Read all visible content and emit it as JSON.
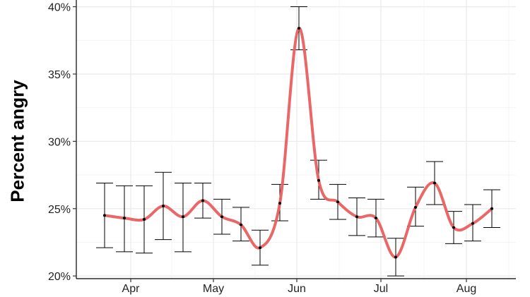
{
  "chart_data": {
    "type": "line",
    "title": "",
    "xlabel": "",
    "ylabel": "Percent angry",
    "x_tick_labels": [
      "Apr",
      "May",
      "Jun",
      "Jul",
      "Aug"
    ],
    "y_tick_labels": [
      "20%",
      "25%",
      "30%",
      "35%",
      "40%"
    ],
    "y_ticks": [
      20,
      25,
      30,
      35,
      40
    ],
    "ylim": [
      19.8,
      40.5
    ],
    "grid": true,
    "line_color": "#e8605f",
    "error_bar_color": "#000000",
    "series": [
      {
        "x": [
          1,
          2,
          3,
          4,
          5,
          6,
          7,
          8,
          9,
          10,
          11,
          12,
          13,
          14,
          15,
          16,
          17,
          18,
          19,
          20,
          21
        ],
        "values": [
          24.5,
          24.3,
          24.2,
          25.2,
          24.4,
          25.6,
          24.4,
          23.8,
          22.1,
          25.4,
          38.4,
          27.1,
          25.5,
          24.4,
          24.3,
          21.4,
          25.1,
          26.9,
          23.6,
          23.9,
          25.0
        ],
        "lower": [
          22.1,
          21.8,
          21.7,
          22.7,
          21.8,
          24.3,
          23.1,
          22.6,
          20.8,
          24.1,
          36.8,
          25.7,
          24.2,
          23.0,
          22.9,
          20.0,
          23.7,
          25.3,
          22.4,
          22.6,
          23.6
        ],
        "upper": [
          26.9,
          26.7,
          26.7,
          27.7,
          26.9,
          26.9,
          25.7,
          25.1,
          23.4,
          26.8,
          40.0,
          28.6,
          26.8,
          25.8,
          25.7,
          22.8,
          26.6,
          28.5,
          24.8,
          25.3,
          26.4
        ]
      }
    ]
  }
}
